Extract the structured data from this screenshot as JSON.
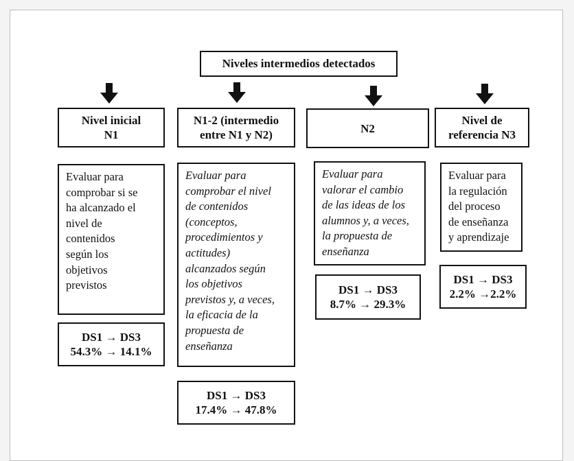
{
  "title": "Niveles intermedios detectados",
  "columns": [
    {
      "header": "Nivel inicial\nN1",
      "description": "Evaluar para\ncomprobar si se\nha alcanzado el\nnivel de\ncontenidos\nsegún los\nobjetivos\nprevistos",
      "description_style": "normal",
      "stat_label": "DS1 → DS3",
      "stat_values": "54.3% → 14.1%"
    },
    {
      "header": "N1-2 (intermedio\nentre  N1 y N2)",
      "description": "Evaluar para\ncomprobar el nivel\nde contenidos\n(conceptos,\nprocedimientos  y\nactitudes)\nalcanzados según\nlos objetivos\nprevistos y, a veces,\nla eficacia de la\npropuesta de\nenseñanza",
      "description_style": "italic",
      "stat_label": "DS1 → DS3",
      "stat_values": "17.4% → 47.8%"
    },
    {
      "header": "N2",
      "description": "Evaluar para\nvalorar el cambio\nde las ideas de los\nalumnos y, a veces,\nla propuesta de\nenseñanza",
      "description_style": "italic",
      "stat_label": "DS1 → DS3",
      "stat_values": "8.7% → 29.3%"
    },
    {
      "header": "Nivel de\nreferencia N3",
      "description": "Evaluar para\nla regulación\ndel proceso\nde enseñanza\ny aprendizaje",
      "description_style": "normal",
      "stat_label": "DS1 → DS3",
      "stat_values": "2.2% →2.2%"
    }
  ],
  "colors": {
    "border": "#111111",
    "background": "#ffffff",
    "page_background": "#f4f4f4"
  }
}
